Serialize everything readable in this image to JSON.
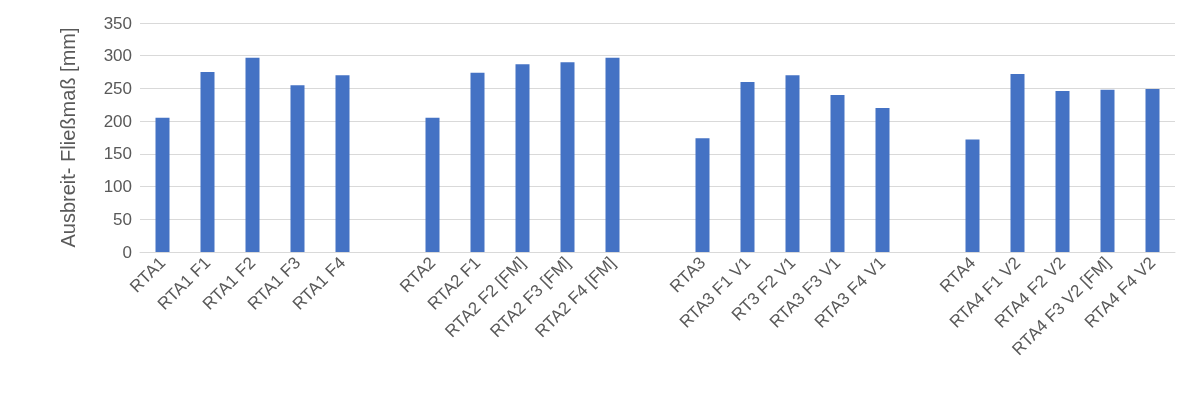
{
  "chart_data": {
    "type": "bar",
    "ylabel": "Ausbreit- Fließmaß [mm]",
    "categories": [
      "RTA1",
      "RTA1 F1",
      "RTA1 F2",
      "RTA1 F3",
      "RTA1 F4",
      null,
      "RTA2",
      "RTA2 F1",
      "RTA2 F2 [FM]",
      "RTA2 F3 [FM]",
      "RTA2 F4 [FM]",
      null,
      "RTA3",
      "RTA3 F1 V1",
      "RT3 F2 V1",
      "RTA3 F3 V1",
      "RTA3 F4 V1",
      null,
      "RTA4",
      "RTA4 F1 V2",
      "RTA4 F2 V2",
      "RTA4 F3 V2 [FM]",
      "RTA4 F4 V2"
    ],
    "values": [
      205,
      275,
      297,
      255,
      270,
      null,
      205,
      274,
      287,
      290,
      297,
      null,
      174,
      260,
      270,
      240,
      220,
      null,
      172,
      272,
      246,
      248,
      249
    ],
    "color": "#4472c4",
    "ylim": [
      0,
      350
    ],
    "yticks": [
      0,
      50,
      100,
      150,
      200,
      250,
      300,
      350
    ],
    "grid": "y"
  }
}
